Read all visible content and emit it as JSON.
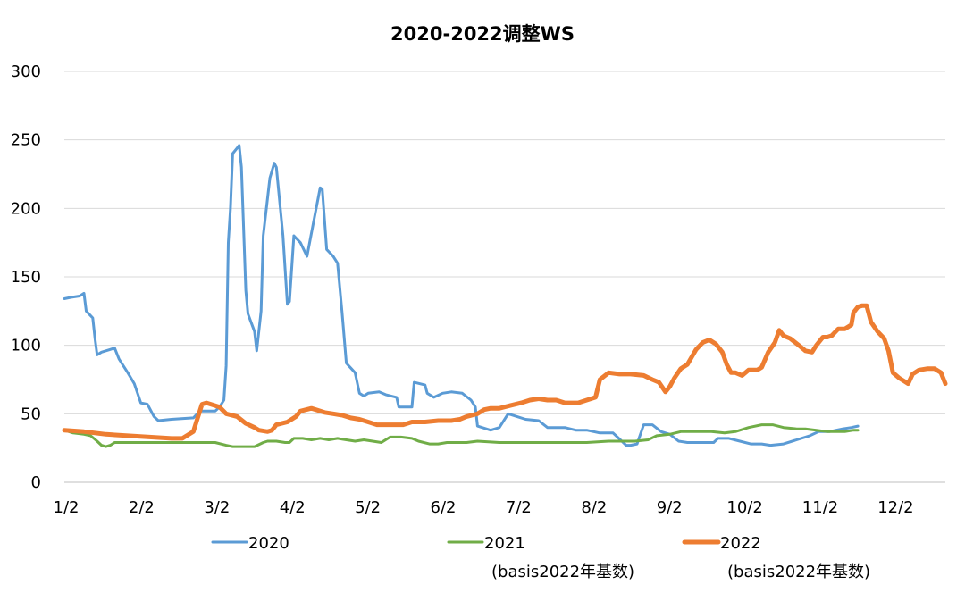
{
  "chart_data": {
    "type": "line",
    "title": "2020-2022调整WS",
    "xlabel": "",
    "ylabel": "",
    "ylim": [
      0,
      300
    ],
    "yticks": [
      "0",
      "50",
      "100",
      "150",
      "200",
      "250",
      "300"
    ],
    "x_tick_labels": [
      "1/2",
      "2/2",
      "3/2",
      "4/2",
      "5/2",
      "6/2",
      "7/2",
      "8/2",
      "9/2",
      "10/2",
      "11/2",
      "12/2"
    ],
    "grid": true,
    "legend_position": "bottom",
    "series": [
      {
        "name": "2020",
        "note": "",
        "color": "#5b9bd5",
        "points": [
          [
            1,
            134
          ],
          [
            4,
            135
          ],
          [
            8,
            136
          ],
          [
            10,
            138
          ],
          [
            11,
            125
          ],
          [
            14,
            120
          ],
          [
            15,
            105
          ],
          [
            16,
            93
          ],
          [
            18,
            95
          ],
          [
            22,
            97
          ],
          [
            24,
            98
          ],
          [
            26,
            90
          ],
          [
            30,
            80
          ],
          [
            33,
            72
          ],
          [
            36,
            58
          ],
          [
            39,
            57
          ],
          [
            42,
            48
          ],
          [
            44,
            45
          ],
          [
            50,
            46
          ],
          [
            60,
            47
          ],
          [
            63,
            52
          ],
          [
            66,
            52
          ],
          [
            70,
            52
          ],
          [
            72,
            55
          ],
          [
            74,
            60
          ],
          [
            75,
            85
          ],
          [
            76,
            175
          ],
          [
            77,
            200
          ],
          [
            78,
            240
          ],
          [
            80,
            244
          ],
          [
            81,
            246
          ],
          [
            82,
            230
          ],
          [
            84,
            140
          ],
          [
            85,
            123
          ],
          [
            88,
            110
          ],
          [
            89,
            96
          ],
          [
            91,
            125
          ],
          [
            92,
            180
          ],
          [
            95,
            222
          ],
          [
            97,
            233
          ],
          [
            98,
            230
          ],
          [
            101,
            180
          ],
          [
            103,
            130
          ],
          [
            104,
            132
          ],
          [
            106,
            180
          ],
          [
            109,
            175
          ],
          [
            112,
            165
          ],
          [
            115,
            190
          ],
          [
            118,
            215
          ],
          [
            119,
            214
          ],
          [
            121,
            170
          ],
          [
            124,
            165
          ],
          [
            126,
            160
          ],
          [
            128,
            125
          ],
          [
            130,
            87
          ],
          [
            134,
            80
          ],
          [
            136,
            65
          ],
          [
            138,
            63
          ],
          [
            140,
            65
          ],
          [
            145,
            66
          ],
          [
            148,
            64
          ],
          [
            153,
            62
          ],
          [
            154,
            55
          ],
          [
            160,
            55
          ],
          [
            161,
            73
          ],
          [
            166,
            71
          ],
          [
            167,
            65
          ],
          [
            170,
            62
          ],
          [
            174,
            65
          ],
          [
            178,
            66
          ],
          [
            183,
            65
          ],
          [
            187,
            60
          ],
          [
            189,
            55
          ],
          [
            190,
            41
          ],
          [
            196,
            38
          ],
          [
            200,
            40
          ],
          [
            204,
            50
          ],
          [
            208,
            48
          ],
          [
            212,
            46
          ],
          [
            218,
            45
          ],
          [
            222,
            40
          ],
          [
            230,
            40
          ],
          [
            235,
            38
          ],
          [
            240,
            38
          ],
          [
            246,
            36
          ],
          [
            252,
            36
          ],
          [
            254,
            33
          ],
          [
            256,
            30
          ],
          [
            258,
            27
          ],
          [
            260,
            27
          ],
          [
            263,
            28
          ],
          [
            266,
            42
          ],
          [
            270,
            42
          ],
          [
            274,
            37
          ],
          [
            278,
            35
          ],
          [
            282,
            30
          ],
          [
            286,
            29
          ],
          [
            298,
            29
          ],
          [
            300,
            32
          ],
          [
            305,
            32
          ],
          [
            310,
            30
          ],
          [
            315,
            28
          ],
          [
            320,
            28
          ],
          [
            324,
            27
          ],
          [
            330,
            28
          ],
          [
            336,
            31
          ],
          [
            342,
            34
          ],
          [
            346,
            37
          ],
          [
            351,
            37
          ],
          [
            354,
            38
          ],
          [
            357,
            39
          ],
          [
            361,
            40
          ],
          [
            364,
            41
          ]
        ]
      },
      {
        "name": "2021",
        "note": "(basis2022年基数)",
        "color": "#70ad47",
        "points": [
          [
            1,
            38
          ],
          [
            5,
            36
          ],
          [
            10,
            35
          ],
          [
            13,
            34
          ],
          [
            16,
            30
          ],
          [
            18,
            27
          ],
          [
            20,
            26
          ],
          [
            22,
            27
          ],
          [
            24,
            29
          ],
          [
            30,
            29
          ],
          [
            35,
            29
          ],
          [
            45,
            29
          ],
          [
            55,
            29
          ],
          [
            65,
            29
          ],
          [
            70,
            29
          ],
          [
            75,
            27
          ],
          [
            78,
            26
          ],
          [
            88,
            26
          ],
          [
            92,
            29
          ],
          [
            94,
            30
          ],
          [
            98,
            30
          ],
          [
            102,
            29
          ],
          [
            104,
            29
          ],
          [
            106,
            32
          ],
          [
            110,
            32
          ],
          [
            114,
            31
          ],
          [
            118,
            32
          ],
          [
            122,
            31
          ],
          [
            126,
            32
          ],
          [
            130,
            31
          ],
          [
            134,
            30
          ],
          [
            138,
            31
          ],
          [
            142,
            30
          ],
          [
            146,
            29
          ],
          [
            150,
            33
          ],
          [
            155,
            33
          ],
          [
            160,
            32
          ],
          [
            163,
            30
          ],
          [
            168,
            28
          ],
          [
            172,
            28
          ],
          [
            176,
            29
          ],
          [
            180,
            29
          ],
          [
            185,
            29
          ],
          [
            190,
            30
          ],
          [
            200,
            29
          ],
          [
            210,
            29
          ],
          [
            220,
            29
          ],
          [
            230,
            29
          ],
          [
            240,
            29
          ],
          [
            250,
            30
          ],
          [
            255,
            30
          ],
          [
            262,
            30
          ],
          [
            268,
            31
          ],
          [
            272,
            34
          ],
          [
            278,
            35
          ],
          [
            283,
            37
          ],
          [
            290,
            37
          ],
          [
            297,
            37
          ],
          [
            303,
            36
          ],
          [
            308,
            37
          ],
          [
            314,
            40
          ],
          [
            320,
            42
          ],
          [
            325,
            42
          ],
          [
            330,
            40
          ],
          [
            336,
            39
          ],
          [
            340,
            39
          ],
          [
            345,
            38
          ],
          [
            350,
            37
          ],
          [
            354,
            37
          ],
          [
            358,
            37
          ],
          [
            362,
            38
          ],
          [
            364,
            38
          ]
        ]
      },
      {
        "name": "2022",
        "note": "(basis2022年基数)",
        "color": "#ed7d31",
        "points": [
          [
            1,
            38
          ],
          [
            10,
            37
          ],
          [
            20,
            35
          ],
          [
            30,
            34
          ],
          [
            40,
            33
          ],
          [
            50,
            32
          ],
          [
            55,
            32
          ],
          [
            60,
            37
          ],
          [
            62,
            47
          ],
          [
            64,
            57
          ],
          [
            66,
            58
          ],
          [
            68,
            57
          ],
          [
            72,
            55
          ],
          [
            75,
            50
          ],
          [
            80,
            48
          ],
          [
            84,
            43
          ],
          [
            88,
            40
          ],
          [
            90,
            38
          ],
          [
            94,
            37
          ],
          [
            96,
            38
          ],
          [
            98,
            42
          ],
          [
            103,
            44
          ],
          [
            107,
            48
          ],
          [
            109,
            52
          ],
          [
            114,
            54
          ],
          [
            116,
            53
          ],
          [
            120,
            51
          ],
          [
            124,
            50
          ],
          [
            128,
            49
          ],
          [
            132,
            47
          ],
          [
            136,
            46
          ],
          [
            140,
            44
          ],
          [
            144,
            42
          ],
          [
            150,
            42
          ],
          [
            156,
            42
          ],
          [
            160,
            44
          ],
          [
            166,
            44
          ],
          [
            172,
            45
          ],
          [
            178,
            45
          ],
          [
            182,
            46
          ],
          [
            185,
            48
          ],
          [
            190,
            50
          ],
          [
            193,
            53
          ],
          [
            196,
            54
          ],
          [
            200,
            54
          ],
          [
            205,
            56
          ],
          [
            210,
            58
          ],
          [
            214,
            60
          ],
          [
            218,
            61
          ],
          [
            222,
            60
          ],
          [
            226,
            60
          ],
          [
            230,
            58
          ],
          [
            236,
            58
          ],
          [
            240,
            60
          ],
          [
            244,
            62
          ],
          [
            246,
            75
          ],
          [
            250,
            80
          ],
          [
            255,
            79
          ],
          [
            260,
            79
          ],
          [
            266,
            78
          ],
          [
            270,
            75
          ],
          [
            273,
            73
          ],
          [
            276,
            66
          ],
          [
            278,
            70
          ],
          [
            280,
            76
          ],
          [
            283,
            83
          ],
          [
            286,
            86
          ],
          [
            290,
            97
          ],
          [
            293,
            102
          ],
          [
            296,
            104
          ],
          [
            299,
            101
          ],
          [
            302,
            95
          ],
          [
            304,
            86
          ],
          [
            306,
            80
          ],
          [
            308,
            80
          ],
          [
            311,
            78
          ],
          [
            314,
            82
          ],
          [
            318,
            82
          ],
          [
            320,
            84
          ],
          [
            323,
            95
          ],
          [
            326,
            102
          ],
          [
            328,
            111
          ],
          [
            330,
            107
          ],
          [
            333,
            105
          ],
          [
            337,
            100
          ],
          [
            340,
            96
          ],
          [
            343,
            95
          ],
          [
            345,
            100
          ],
          [
            348,
            106
          ],
          [
            350,
            106
          ],
          [
            352,
            107
          ],
          [
            355,
            112
          ],
          [
            358,
            112
          ],
          [
            361,
            115
          ],
          [
            362,
            124
          ],
          [
            364,
            128
          ],
          [
            366,
            129
          ],
          [
            368,
            129
          ],
          [
            370,
            117
          ],
          [
            373,
            110
          ],
          [
            376,
            105
          ],
          [
            378,
            96
          ],
          [
            380,
            80
          ],
          [
            383,
            76
          ],
          [
            385,
            74
          ],
          [
            387,
            72
          ],
          [
            389,
            79
          ],
          [
            392,
            82
          ],
          [
            396,
            83
          ],
          [
            399,
            83
          ],
          [
            402,
            80
          ],
          [
            404,
            72
          ]
        ]
      }
    ]
  }
}
